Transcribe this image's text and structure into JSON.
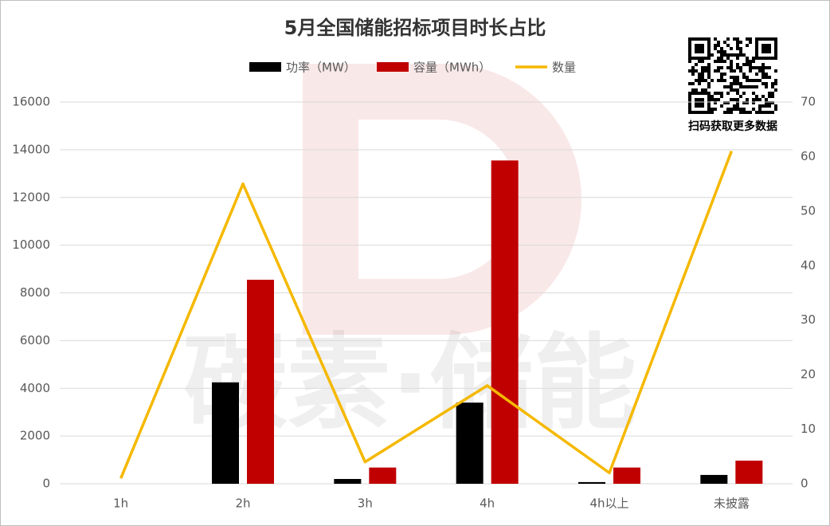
{
  "chart_data": {
    "type": "bar-line",
    "title": "5月全国储能招标项目时长占比",
    "categories": [
      "1h",
      "2h",
      "3h",
      "4h",
      "4h以上",
      "未披露"
    ],
    "series": [
      {
        "name": "功率（MW）",
        "type": "bar",
        "color": "#000000",
        "values": [
          0,
          4250,
          200,
          3400,
          70,
          370
        ]
      },
      {
        "name": "容量（MWh）",
        "type": "bar",
        "color": "#c00000",
        "values": [
          0,
          8550,
          680,
          13550,
          680,
          970
        ]
      },
      {
        "name": "数量",
        "type": "line",
        "axis": "y2",
        "color": "#f5b800",
        "values": [
          1,
          55,
          4,
          18,
          2,
          61
        ]
      }
    ],
    "ylim": [
      0,
      16000
    ],
    "yticks": [
      0,
      2000,
      4000,
      6000,
      8000,
      10000,
      12000,
      14000,
      16000
    ],
    "y2lim": [
      0,
      70
    ],
    "y2ticks": [
      0,
      10,
      20,
      30,
      40,
      50,
      60,
      70
    ],
    "grid": true,
    "legend": "top",
    "watermark": "碳素·储能",
    "qr_caption": "扫码获取更多数据"
  }
}
